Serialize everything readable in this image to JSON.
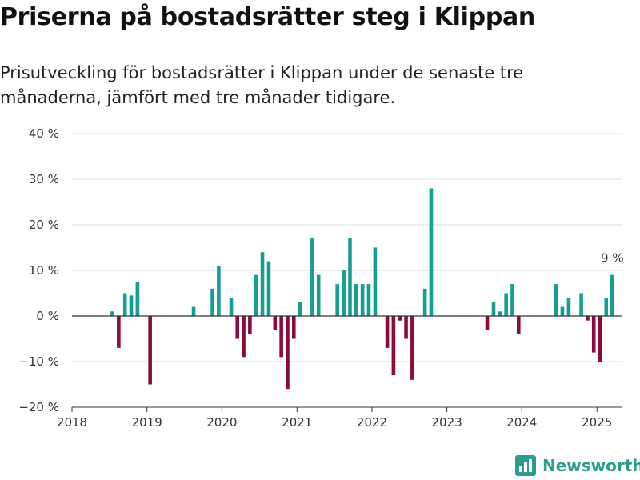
{
  "title": "Priserna på bostadsrätter steg i Klippan",
  "subtitle": "Prisutveckling för bostadsrätter i Klippan under de senaste tre månaderna, jämfört med tre månader tidigare.",
  "brand": "Newsworthy",
  "colors": {
    "positive": "#169e93",
    "negative": "#8c0a3e",
    "grid": "#dddddd",
    "axis": "#333333",
    "brand": "#2e9c8c"
  },
  "chart_data": {
    "type": "bar",
    "x_axis": {
      "type": "date",
      "min": "2018-01-01",
      "max": "2025-05-01",
      "ticks": [
        "2018",
        "2019",
        "2020",
        "2021",
        "2022",
        "2023",
        "2024",
        "2025"
      ]
    },
    "y_axis": {
      "min": -20,
      "max": 40,
      "ticks": [
        -20,
        -10,
        0,
        10,
        20,
        30,
        40
      ],
      "tick_labels": [
        "−20 %",
        "−10 %",
        "0 %",
        "10 %",
        "20 %",
        "30 %",
        "40 %"
      ]
    },
    "grid": true,
    "annotation": {
      "date": "2025-02",
      "text": "9 %"
    },
    "bars": [
      {
        "date": "2018-07",
        "value": 1
      },
      {
        "date": "2018-08",
        "value": -7
      },
      {
        "date": "2018-09",
        "value": 5
      },
      {
        "date": "2018-10",
        "value": 4.5
      },
      {
        "date": "2018-11",
        "value": 7.5
      },
      {
        "date": "2019-01",
        "value": -15
      },
      {
        "date": "2019-08",
        "value": 2
      },
      {
        "date": "2019-11",
        "value": 6
      },
      {
        "date": "2019-12",
        "value": 11
      },
      {
        "date": "2020-02",
        "value": 4
      },
      {
        "date": "2020-03",
        "value": -5
      },
      {
        "date": "2020-04",
        "value": -9
      },
      {
        "date": "2020-05",
        "value": -4
      },
      {
        "date": "2020-06",
        "value": 9
      },
      {
        "date": "2020-07",
        "value": 14
      },
      {
        "date": "2020-08",
        "value": 12
      },
      {
        "date": "2020-09",
        "value": -3
      },
      {
        "date": "2020-10",
        "value": -9
      },
      {
        "date": "2020-11",
        "value": -16
      },
      {
        "date": "2020-12",
        "value": -5
      },
      {
        "date": "2021-01",
        "value": 3
      },
      {
        "date": "2021-03",
        "value": 17
      },
      {
        "date": "2021-04",
        "value": 9
      },
      {
        "date": "2021-07",
        "value": 7
      },
      {
        "date": "2021-08",
        "value": 10
      },
      {
        "date": "2021-09",
        "value": 17
      },
      {
        "date": "2021-10",
        "value": 7
      },
      {
        "date": "2021-11",
        "value": 7
      },
      {
        "date": "2021-12",
        "value": 7
      },
      {
        "date": "2022-01",
        "value": 15
      },
      {
        "date": "2022-03",
        "value": -7
      },
      {
        "date": "2022-04",
        "value": -13
      },
      {
        "date": "2022-05",
        "value": -1
      },
      {
        "date": "2022-06",
        "value": -5
      },
      {
        "date": "2022-07",
        "value": -14
      },
      {
        "date": "2022-09",
        "value": 6
      },
      {
        "date": "2022-10",
        "value": 28
      },
      {
        "date": "2023-07",
        "value": -3
      },
      {
        "date": "2023-08",
        "value": 3
      },
      {
        "date": "2023-09",
        "value": 1
      },
      {
        "date": "2023-10",
        "value": 5
      },
      {
        "date": "2023-11",
        "value": 7
      },
      {
        "date": "2023-12",
        "value": -4
      },
      {
        "date": "2024-06",
        "value": 7
      },
      {
        "date": "2024-07",
        "value": 2
      },
      {
        "date": "2024-08",
        "value": 4
      },
      {
        "date": "2024-10",
        "value": 5
      },
      {
        "date": "2024-11",
        "value": -1
      },
      {
        "date": "2024-12",
        "value": -8
      },
      {
        "date": "2025-01",
        "value": -10
      },
      {
        "date": "2025-02",
        "value": 4
      },
      {
        "date": "2025-03",
        "value": 9
      }
    ]
  }
}
